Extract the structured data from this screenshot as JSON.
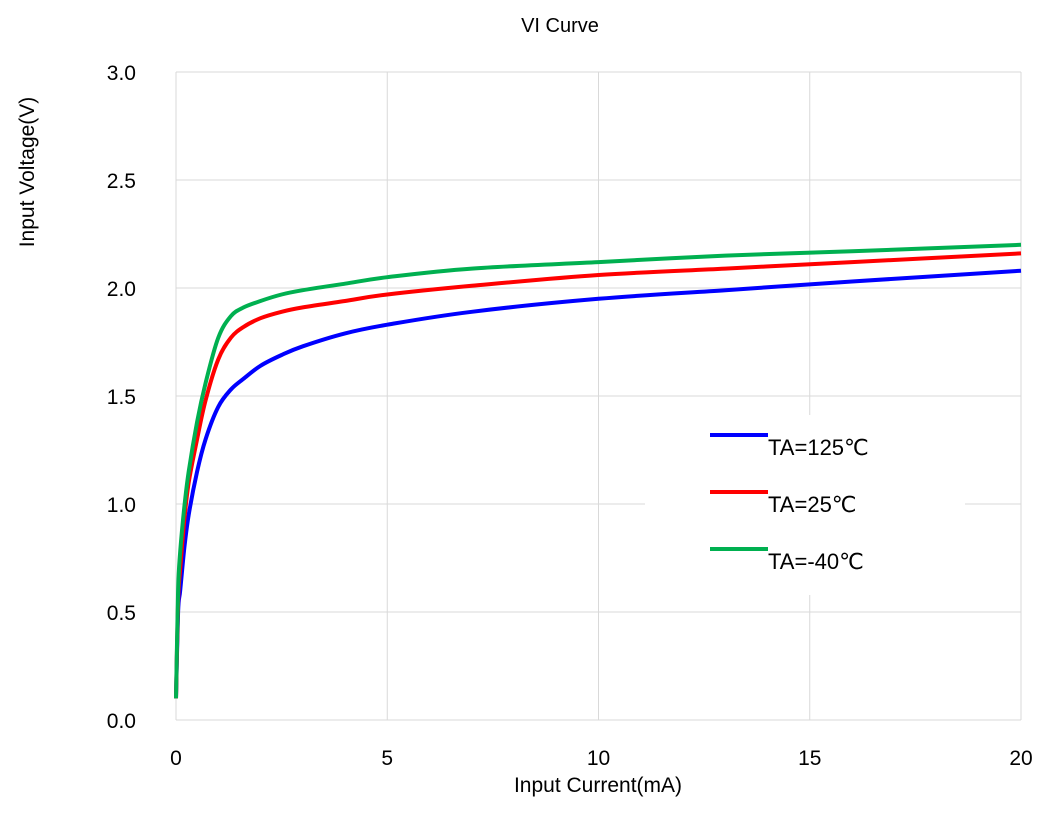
{
  "chart_data": {
    "type": "line",
    "title": "VI  Curve",
    "xlabel": "Input Current(mA)",
    "ylabel": "Input Voltage(V)",
    "xlim": [
      0,
      20
    ],
    "ylim": [
      0,
      3.0
    ],
    "xticks": [
      "0",
      "5",
      "10",
      "15",
      "20"
    ],
    "yticks": [
      "0.0",
      "0.5",
      "1.0",
      "1.5",
      "2.0",
      "2.5",
      "3.0"
    ],
    "grid": true,
    "legend_position": "right-middle",
    "series": [
      {
        "name": "TA=125℃",
        "color": "#0000ff",
        "x": [
          0,
          0.05,
          0.1,
          0.2,
          0.3,
          0.5,
          0.7,
          1.0,
          1.3,
          1.6,
          2.0,
          2.5,
          3,
          4,
          5,
          7,
          10,
          13,
          16,
          20
        ],
        "y": [
          0.1,
          0.5,
          0.6,
          0.8,
          0.95,
          1.15,
          1.3,
          1.45,
          1.53,
          1.58,
          1.64,
          1.69,
          1.73,
          1.79,
          1.83,
          1.89,
          1.95,
          1.99,
          2.03,
          2.08
        ]
      },
      {
        "name": "TA=25℃",
        "color": "#ff0000",
        "x": [
          0,
          0.05,
          0.1,
          0.2,
          0.3,
          0.5,
          0.7,
          1.0,
          1.3,
          1.6,
          2.0,
          2.5,
          3,
          4,
          5,
          7,
          10,
          13,
          16,
          20
        ],
        "y": [
          0.1,
          0.55,
          0.7,
          0.93,
          1.1,
          1.3,
          1.48,
          1.67,
          1.77,
          1.82,
          1.86,
          1.89,
          1.91,
          1.94,
          1.97,
          2.01,
          2.06,
          2.09,
          2.12,
          2.16
        ]
      },
      {
        "name": "TA=-40℃",
        "color": "#00b050",
        "x": [
          0,
          0.05,
          0.1,
          0.2,
          0.3,
          0.5,
          0.7,
          1.0,
          1.3,
          1.6,
          2.0,
          2.5,
          3,
          4,
          5,
          7,
          10,
          13,
          16,
          20
        ],
        "y": [
          0.1,
          0.6,
          0.78,
          0.99,
          1.15,
          1.38,
          1.56,
          1.77,
          1.87,
          1.91,
          1.94,
          1.97,
          1.99,
          2.02,
          2.05,
          2.09,
          2.12,
          2.15,
          2.17,
          2.2
        ]
      }
    ]
  }
}
